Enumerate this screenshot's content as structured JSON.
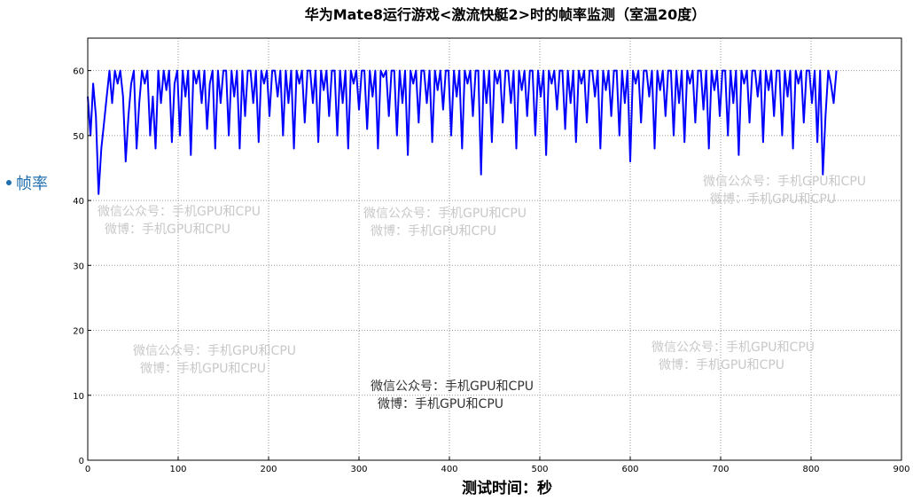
{
  "chart_data": {
    "type": "line",
    "title": "华为Mate8运行游戏<激流快艇2>时的帧率监测（室温20度）",
    "xlabel": "测试时间：秒",
    "ylabel": "",
    "xlim": [
      0,
      900
    ],
    "ylim": [
      0,
      65
    ],
    "xticks": [
      0,
      100,
      200,
      300,
      400,
      500,
      600,
      700,
      800,
      900
    ],
    "yticks": [
      0,
      10,
      20,
      30,
      40,
      50,
      60
    ],
    "grid": true,
    "legend": {
      "position": "left",
      "entries": [
        "帧率"
      ]
    },
    "series": [
      {
        "name": "帧率",
        "color": "#0000ff",
        "x_start": 0,
        "x_step": 3,
        "values": [
          56,
          50,
          58,
          53,
          41,
          48,
          52,
          56,
          60,
          55,
          60,
          58,
          60,
          56,
          46,
          53,
          58,
          60,
          48,
          55,
          60,
          58,
          60,
          50,
          56,
          48,
          60,
          55,
          60,
          57,
          60,
          49,
          58,
          60,
          50,
          60,
          56,
          60,
          47,
          60,
          58,
          60,
          55,
          60,
          51,
          58,
          60,
          48,
          60,
          55,
          60,
          60,
          50,
          60,
          56,
          60,
          48,
          60,
          53,
          60,
          60,
          55,
          60,
          49,
          60,
          58,
          60,
          53,
          60,
          60,
          56,
          60,
          50,
          60,
          55,
          60,
          48,
          60,
          58,
          60,
          52,
          60,
          60,
          55,
          60,
          49,
          60,
          57,
          60,
          53,
          60,
          60,
          50,
          60,
          55,
          60,
          48,
          60,
          58,
          60,
          54,
          60,
          60,
          51,
          60,
          56,
          60,
          48,
          60,
          59,
          60,
          53,
          60,
          60,
          50,
          60,
          55,
          60,
          47,
          60,
          58,
          60,
          52,
          60,
          60,
          55,
          60,
          49,
          60,
          57,
          60,
          54,
          60,
          60,
          50,
          60,
          56,
          60,
          48,
          60,
          58,
          60,
          53,
          60,
          60,
          44,
          60,
          55,
          60,
          49,
          60,
          58,
          60,
          52,
          60,
          60,
          55,
          60,
          48,
          60,
          57,
          60,
          53,
          60,
          60,
          50,
          60,
          56,
          60,
          47,
          60,
          58,
          60,
          54,
          60,
          60,
          51,
          60,
          55,
          60,
          49,
          60,
          58,
          60,
          52,
          60,
          60,
          56,
          60,
          48,
          60,
          57,
          60,
          53,
          60,
          60,
          50,
          60,
          55,
          60,
          46,
          60,
          58,
          60,
          52,
          60,
          60,
          56,
          60,
          48,
          60,
          57,
          60,
          53,
          60,
          60,
          50,
          60,
          55,
          60,
          49,
          60,
          58,
          60,
          52,
          60,
          60,
          54,
          60,
          48,
          60,
          57,
          60,
          53,
          60,
          60,
          50,
          60,
          55,
          60,
          47,
          60,
          58,
          60,
          52,
          60,
          60,
          56,
          60,
          49,
          60,
          57,
          60,
          53,
          60,
          60,
          50,
          60,
          56,
          60,
          48,
          60,
          58,
          60,
          52,
          60,
          60,
          55,
          60,
          49,
          60,
          44,
          53,
          60,
          58,
          55,
          60
        ]
      }
    ],
    "watermarks": [
      {
        "line1": "微信公众号：手机GPU和CPU",
        "line2": "微博：手机GPU和CPU"
      }
    ]
  }
}
